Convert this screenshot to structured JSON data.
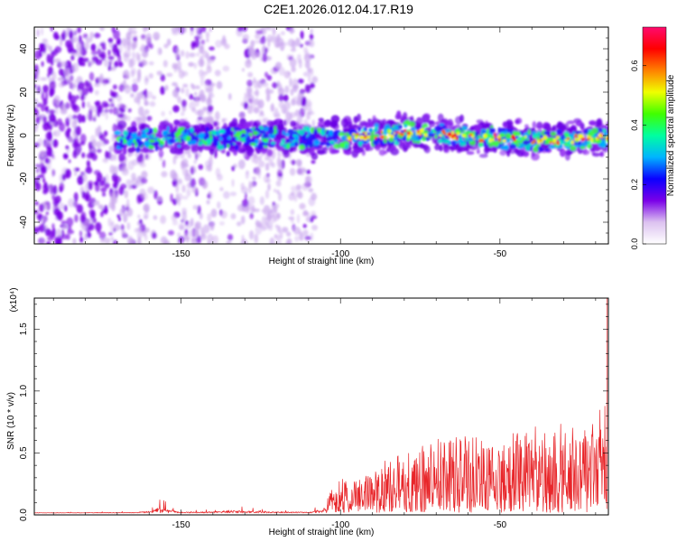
{
  "title": "C2E1.2026.012.04.17.R19",
  "chart_data": [
    {
      "type": "heatmap",
      "xlabel": "Height of straight line (km)",
      "ylabel": "Frequency (Hz)",
      "xlim": [
        -196,
        -16
      ],
      "ylim": [
        -50,
        50
      ],
      "x_ticks": [
        -150,
        -100,
        -50
      ],
      "y_ticks": [
        -40,
        -20,
        0,
        20,
        40
      ],
      "band_center_hz": [
        [
          -170,
          -2
        ],
        [
          -150,
          -1
        ],
        [
          -130,
          -1
        ],
        [
          -110,
          -1
        ],
        [
          -100,
          -1
        ],
        [
          -90,
          0
        ],
        [
          -80,
          1
        ],
        [
          -70,
          1
        ],
        [
          -60,
          -1
        ],
        [
          -50,
          -1
        ],
        [
          -40,
          -2
        ],
        [
          -30,
          -2
        ],
        [
          -20,
          -1
        ]
      ],
      "noise_region_x": [
        -196,
        -108
      ],
      "colorbar": {
        "label": "Normalized spectral amplitude",
        "range": [
          0,
          0.73
        ],
        "ticks": [
          0.0,
          0.2,
          0.4,
          0.6
        ],
        "colors": [
          "#ffffff",
          "#dcc2f0",
          "#7a00e8",
          "#0a00ff",
          "#00b4ff",
          "#00ffa0",
          "#40ff00",
          "#f0ff00",
          "#ff8000",
          "#ff0000",
          "#ff0a6e"
        ]
      },
      "colors": {
        "dense": "#7800e6",
        "light": "#c9a6ee"
      }
    },
    {
      "type": "line",
      "xlabel": "Height of straight line (km)",
      "ylabel": "SNR (10 * v/v)",
      "multiplier": "(x10⁴)",
      "xlim": [
        -196,
        -16
      ],
      "ylim": [
        0,
        1.75
      ],
      "x_ticks": [
        -150,
        -100,
        -50
      ],
      "y_ticks": [
        0.0,
        0.5,
        1.0,
        1.5
      ],
      "envelope": [
        [
          -196,
          0.02
        ],
        [
          -165,
          0.03
        ],
        [
          -160,
          0.06
        ],
        [
          -157,
          0.15
        ],
        [
          -150,
          0.04
        ],
        [
          -140,
          0.05
        ],
        [
          -135,
          0.08
        ],
        [
          -125,
          0.05
        ],
        [
          -110,
          0.04
        ],
        [
          -104,
          0.14
        ],
        [
          -100,
          0.3
        ],
        [
          -95,
          0.25
        ],
        [
          -90,
          0.33
        ],
        [
          -85,
          0.45
        ],
        [
          -80,
          0.5
        ],
        [
          -70,
          0.6
        ],
        [
          -60,
          0.62
        ],
        [
          -55,
          0.6
        ],
        [
          -50,
          0.5
        ],
        [
          -45,
          0.68
        ],
        [
          -40,
          0.72
        ],
        [
          -35,
          0.62
        ],
        [
          -30,
          0.75
        ],
        [
          -25,
          0.68
        ],
        [
          -20,
          0.85
        ],
        [
          -17.5,
          0.85
        ],
        [
          -16.5,
          1.75
        ]
      ],
      "color": "#e8262a"
    }
  ]
}
